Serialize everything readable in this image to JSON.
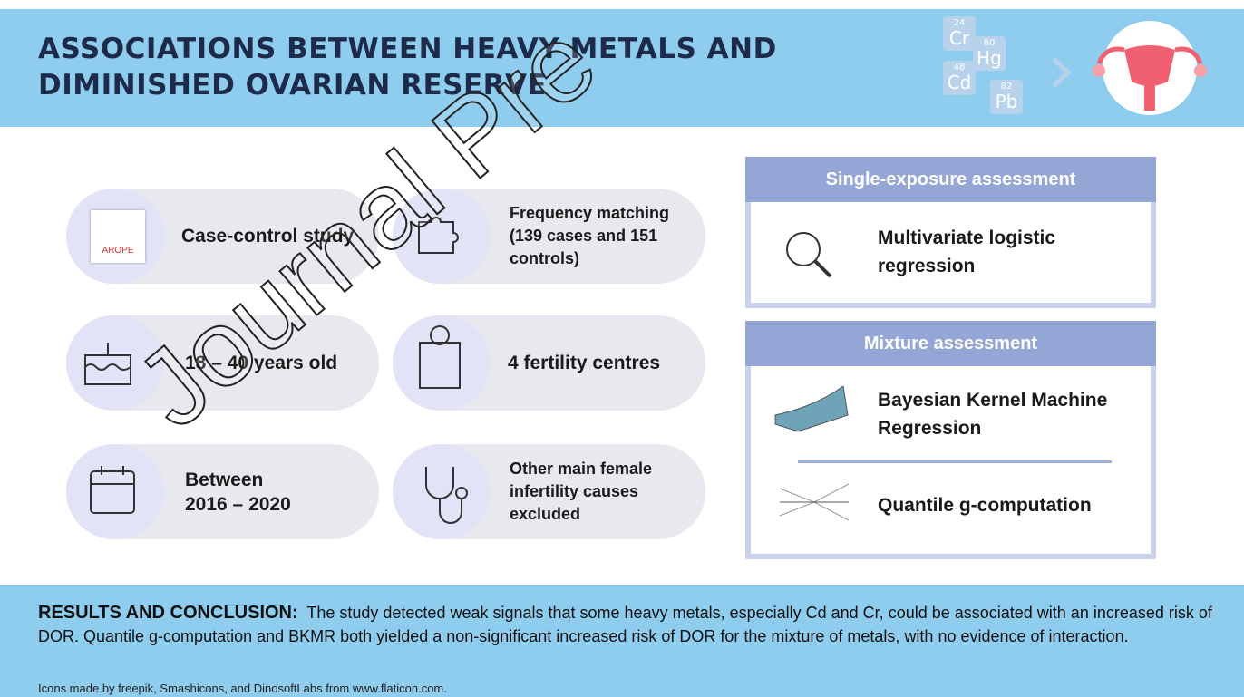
{
  "header": {
    "title_lines": [
      "ASSOCIATIONS BETWEEN HEAVY METALS AND",
      "DIMINISHED OVARIAN RESERVE"
    ],
    "elements": [
      {
        "symbol": "Cr",
        "number": "24"
      },
      {
        "symbol": "Cd",
        "number": "48"
      },
      {
        "symbol": "Hg",
        "number": "80"
      },
      {
        "symbol": "Pb",
        "number": "82"
      }
    ]
  },
  "watermark": "Journal Pre",
  "study_items": [
    {
      "lines": [
        "Case-control study"
      ],
      "logo": "AROPE"
    },
    {
      "lines": [
        "Frequency matching",
        "(139 cases and 151",
        "controls)"
      ]
    },
    {
      "lines": [
        "18 – 40 years old"
      ]
    },
    {
      "lines": [
        "4 fertility centres"
      ]
    },
    {
      "lines": [
        "Between",
        "2016 – 2020"
      ]
    },
    {
      "lines": [
        "Other main female",
        "infertility causes",
        "excluded"
      ]
    }
  ],
  "assessments": [
    {
      "title": "Single-exposure assessment",
      "methods": [
        {
          "lines": [
            "Multivariate logistic",
            "regression"
          ]
        }
      ]
    },
    {
      "title": "Mixture assessment",
      "methods": [
        {
          "lines": [
            "Bayesian Kernel Machine",
            "Regression"
          ]
        },
        {
          "lines": [
            "Quantile g-computation"
          ]
        }
      ]
    }
  ],
  "results": {
    "label": "RESULTS AND CONCLUSION:",
    "text": "The study detected weak signals that some heavy metals, especially Cd and Cr, could be associated with an increased risk of DOR. Quantile g-computation and BKMR both yielded a non-significant increased risk of DOR for the mixture of metals, with no evidence of interaction."
  },
  "credits": "Icons made by freepik, Smashicons, and DinosoftLabs from www.flaticon.com."
}
